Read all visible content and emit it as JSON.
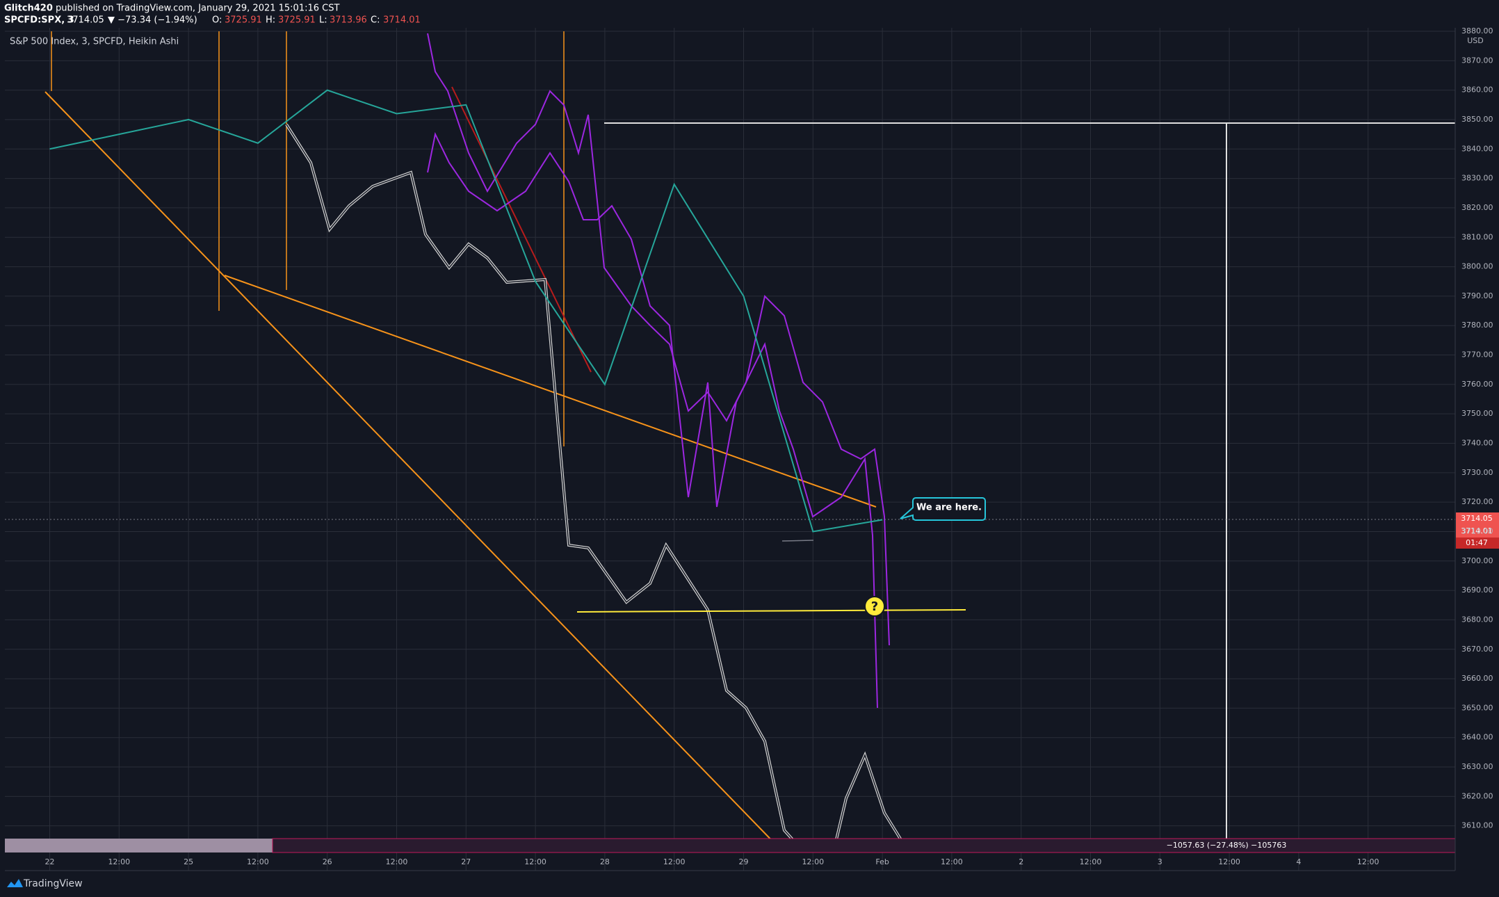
{
  "header": {
    "publisher": "Glitch420",
    "published": "published on TradingView.com, January 29, 2021 15:01:16 CST",
    "symbol": "SPCFD:SPX, 3",
    "last": "3714.05",
    "change": "▼ −73.34 (−1.94%)",
    "o_label": "O:",
    "open": "3725.91",
    "h_label": "H:",
    "high": "3725.91",
    "l_label": "L:",
    "low": "3713.96",
    "c_label": "C:",
    "close": "3714.01"
  },
  "chart_data": {
    "type": "line",
    "title": "S&P 500 Index, 3, SPCFD, Heikin Ashi",
    "categories": [
      "22",
      "12:00",
      "25",
      "12:00",
      "26",
      "12:00",
      "27",
      "12:00",
      "28",
      "12:00",
      "29",
      "12:00",
      "Feb",
      "12:00",
      "2",
      "12:00",
      "3",
      "12:00",
      "4",
      "12:00"
    ],
    "values": [
      3840,
      3845,
      3850,
      3842,
      3860,
      3852,
      3855,
      3795,
      3760,
      3828,
      3790,
      3710,
      3714,
      null,
      null,
      null,
      null,
      null,
      null,
      null
    ],
    "color": "#26a69a",
    "ylim": [
      3600,
      3880
    ],
    "yticks": [
      {
        "value": 3610,
        "label": "3610.00"
      },
      {
        "value": 3620,
        "label": "3620.00"
      },
      {
        "value": 3630,
        "label": "3630.00"
      },
      {
        "value": 3640,
        "label": "3640.00"
      },
      {
        "value": 3650,
        "label": "3650.00"
      },
      {
        "value": 3660,
        "label": "3660.00"
      },
      {
        "value": 3670,
        "label": "3670.00"
      },
      {
        "value": 3680,
        "label": "3680.00"
      },
      {
        "value": 3690,
        "label": "3690.00"
      },
      {
        "value": 3700,
        "label": "3700.00"
      },
      {
        "value": 3710,
        "label": "3710.00"
      },
      {
        "value": 3720,
        "label": "3720.00"
      },
      {
        "value": 3730,
        "label": "3730.00"
      },
      {
        "value": 3740,
        "label": "3740.00"
      },
      {
        "value": 3750,
        "label": "3750.00"
      },
      {
        "value": 3760,
        "label": "3760.00"
      },
      {
        "value": 3770,
        "label": "3770.00"
      },
      {
        "value": 3780,
        "label": "3780.00"
      },
      {
        "value": 3790,
        "label": "3790.00"
      },
      {
        "value": 3800,
        "label": "3800.00"
      },
      {
        "value": 3810,
        "label": "3810.00"
      },
      {
        "value": 3820,
        "label": "3820.00"
      },
      {
        "value": 3830,
        "label": "3830.00"
      },
      {
        "value": 3840,
        "label": "3840.00"
      },
      {
        "value": 3850,
        "label": "3850.00"
      },
      {
        "value": 3860,
        "label": "3860.00"
      },
      {
        "value": 3870,
        "label": "3870.00"
      },
      {
        "value": 3880,
        "label": "3880.00"
      }
    ],
    "grid": true,
    "currency": "USD",
    "price_labels": [
      "3714.05",
      "3714.01",
      "01:47"
    ],
    "annotations": {
      "callout": "We are here.",
      "question": "?",
      "range": "−1057.63 (−27.48%) −105763"
    }
  },
  "footer": {
    "brand": "TradingView"
  }
}
